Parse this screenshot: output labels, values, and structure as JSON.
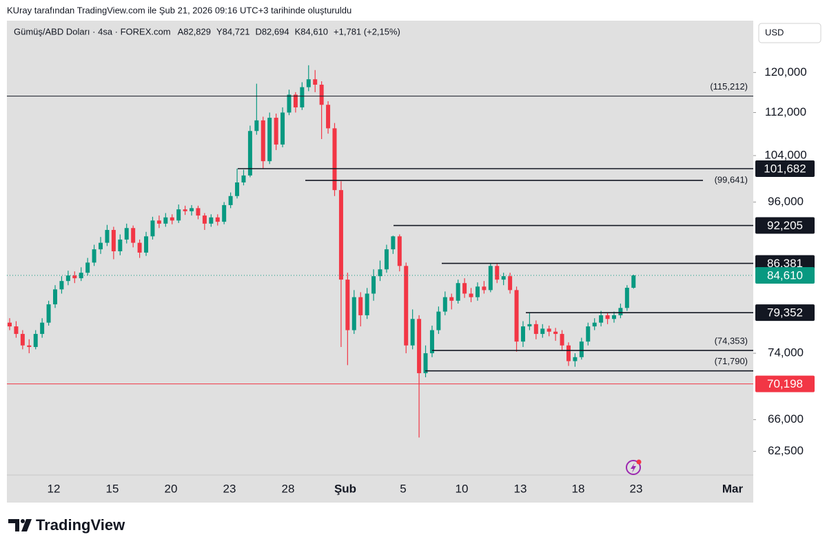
{
  "chart_data": {
    "type": "candlestick",
    "attribution": "KUray tarafından TradingView.com ile Şub 21, 2026 09:16 UTC+3 tarihinde oluşturuldu",
    "symbol": "Gümüş/ABD Doları · 4sa · FOREX.com",
    "ohlc_labels": [
      "A82,829",
      "Y84,721",
      "D82,694",
      "K84,610",
      "+1,781 (+2,15%)"
    ],
    "currency": "USD",
    "brand": "TradingView",
    "log_scale": true,
    "up_color": "#089981",
    "down_color": "#f23645",
    "ylim": [
      60000,
      131200
    ],
    "yticks": [
      {
        "value": 62500,
        "label": "62,500"
      },
      {
        "value": 66000,
        "label": "66,000"
      },
      {
        "value": 74000,
        "label": "74,000"
      },
      {
        "value": 96000,
        "label": "96,000"
      },
      {
        "value": 104000,
        "label": "104,000"
      },
      {
        "value": 112000,
        "label": "112,000"
      },
      {
        "value": 120000,
        "label": "120,000"
      }
    ],
    "xticks": [
      "12",
      "15",
      "20",
      "23",
      "28",
      "Şub",
      "5",
      "10",
      "13",
      "18",
      "23",
      "Mar"
    ],
    "price_lines": [
      {
        "value": 115212,
        "label": "(115,212)",
        "color": "#131722"
      },
      {
        "value": 101682,
        "label": "101,682",
        "color": "#131722"
      },
      {
        "value": 99641,
        "label": "(99,641)",
        "color": "#131722"
      },
      {
        "value": 92205,
        "label": "92,205",
        "color": "#131722"
      },
      {
        "value": 86381,
        "label": "86,381",
        "color": "#131722"
      },
      {
        "value": 84610,
        "label": "84,610",
        "color": "#089981"
      },
      {
        "value": 79352,
        "label": "79,352",
        "color": "#131722"
      },
      {
        "value": 74353,
        "label": "(74,353)",
        "color": "#131722"
      },
      {
        "value": 71790,
        "label": "(71,790)",
        "color": "#131722"
      },
      {
        "value": 70198,
        "label": "70,198",
        "color": "#f23645"
      }
    ],
    "candles": [
      [
        78000,
        78600,
        77000,
        77500
      ],
      [
        77500,
        78200,
        76000,
        76500
      ],
      [
        76500,
        77000,
        74500,
        75000
      ],
      [
        75000,
        75800,
        74000,
        74800
      ],
      [
        74800,
        77000,
        74500,
        76500
      ],
      [
        76500,
        78600,
        76000,
        78000
      ],
      [
        78000,
        81000,
        77600,
        80500
      ],
      [
        80500,
        83200,
        80000,
        82600
      ],
      [
        82600,
        84500,
        82000,
        83800
      ],
      [
        83800,
        85300,
        83200,
        84600
      ],
      [
        84600,
        85200,
        83500,
        84200
      ],
      [
        84200,
        85800,
        83800,
        85000
      ],
      [
        85000,
        87200,
        84600,
        86500
      ],
      [
        86500,
        89200,
        86000,
        88500
      ],
      [
        88500,
        90400,
        87800,
        89500
      ],
      [
        89500,
        92300,
        89000,
        91500
      ],
      [
        91500,
        92000,
        87000,
        88200
      ],
      [
        88200,
        90800,
        87600,
        90000
      ],
      [
        90000,
        92500,
        89400,
        91800
      ],
      [
        91800,
        92200,
        88800,
        89500
      ],
      [
        89500,
        90000,
        87200,
        88000
      ],
      [
        88000,
        91200,
        87500,
        90500
      ],
      [
        90500,
        93600,
        90000,
        93000
      ],
      [
        93000,
        93800,
        91800,
        92500
      ],
      [
        92500,
        94200,
        92000,
        93500
      ],
      [
        93500,
        94000,
        92400,
        93000
      ],
      [
        93000,
        95600,
        92600,
        94800
      ],
      [
        94800,
        95400,
        93900,
        94500
      ],
      [
        94500,
        95500,
        93800,
        95000
      ],
      [
        95000,
        95400,
        93200,
        93800
      ],
      [
        93800,
        94200,
        91500,
        92500
      ],
      [
        92500,
        94000,
        92000,
        93500
      ],
      [
        93500,
        94000,
        92200,
        92800
      ],
      [
        92800,
        96000,
        92400,
        95500
      ],
      [
        95500,
        97600,
        95000,
        97000
      ],
      [
        97000,
        101700,
        96600,
        99300
      ],
      [
        99300,
        101500,
        98800,
        100500
      ],
      [
        100500,
        109500,
        100200,
        108500
      ],
      [
        108500,
        117700,
        107800,
        110500
      ],
      [
        110500,
        111200,
        101700,
        103000
      ],
      [
        103000,
        112000,
        102500,
        111000
      ],
      [
        111000,
        111800,
        105000,
        106000
      ],
      [
        106000,
        113000,
        105500,
        112000
      ],
      [
        112000,
        116500,
        111500,
        115500
      ],
      [
        115500,
        116000,
        112000,
        113000
      ],
      [
        113000,
        118000,
        112500,
        117000
      ],
      [
        117000,
        121500,
        116200,
        118600
      ],
      [
        118600,
        120500,
        116000,
        117500
      ],
      [
        117500,
        118200,
        107000,
        113500
      ],
      [
        113500,
        114200,
        108000,
        109000
      ],
      [
        109000,
        110000,
        97000,
        98000
      ],
      [
        98000,
        99500,
        74800,
        84000
      ],
      [
        84000,
        85000,
        72500,
        77000
      ],
      [
        77000,
        82500,
        76500,
        81500
      ],
      [
        81500,
        82200,
        77500,
        79000
      ],
      [
        79000,
        82800,
        78500,
        82000
      ],
      [
        82000,
        85500,
        81000,
        84500
      ],
      [
        84500,
        86800,
        83800,
        85500
      ],
      [
        85500,
        89200,
        85000,
        88500
      ],
      [
        88500,
        90600,
        87800,
        90500
      ],
      [
        90500,
        90800,
        85200,
        86000
      ],
      [
        86000,
        86500,
        74000,
        75000
      ],
      [
        75000,
        79800,
        74500,
        78500
      ],
      [
        78500,
        79000,
        64000,
        71500
      ],
      [
        71500,
        75000,
        71000,
        74000
      ],
      [
        74000,
        77600,
        73500,
        77000
      ],
      [
        77000,
        80200,
        76500,
        79500
      ],
      [
        79500,
        82300,
        79000,
        81500
      ],
      [
        81500,
        82000,
        79800,
        81000
      ],
      [
        81000,
        84000,
        80600,
        83500
      ],
      [
        83500,
        84200,
        81400,
        82000
      ],
      [
        82000,
        82800,
        80800,
        81500
      ],
      [
        81500,
        83600,
        81000,
        83000
      ],
      [
        83000,
        83800,
        82000,
        82500
      ],
      [
        82500,
        86381,
        82200,
        86000
      ],
      [
        86000,
        86300,
        83500,
        84000
      ],
      [
        84000,
        85000,
        83200,
        84500
      ],
      [
        84500,
        85000,
        82000,
        82500
      ],
      [
        82500,
        83000,
        74200,
        75500
      ],
      [
        75500,
        78200,
        74800,
        77500
      ],
      [
        77500,
        79352,
        77000,
        77800
      ],
      [
        77800,
        78300,
        75800,
        76500
      ],
      [
        76500,
        77800,
        76000,
        77200
      ],
      [
        77200,
        77600,
        76200,
        76800
      ],
      [
        76800,
        77300,
        75600,
        76500
      ],
      [
        76500,
        77000,
        74400,
        75000
      ],
      [
        75000,
        75400,
        72400,
        73000
      ],
      [
        73000,
        74000,
        72300,
        73500
      ],
      [
        73500,
        76000,
        73200,
        75500
      ],
      [
        75500,
        78000,
        75000,
        77500
      ],
      [
        77500,
        78600,
        77000,
        78000
      ],
      [
        78000,
        79600,
        77500,
        79000
      ],
      [
        79000,
        79300,
        77800,
        78500
      ],
      [
        78500,
        79500,
        78000,
        79000
      ],
      [
        79000,
        80600,
        78600,
        80000
      ],
      [
        80000,
        83200,
        79600,
        82829
      ],
      [
        82829,
        84721,
        82694,
        84610
      ]
    ]
  }
}
